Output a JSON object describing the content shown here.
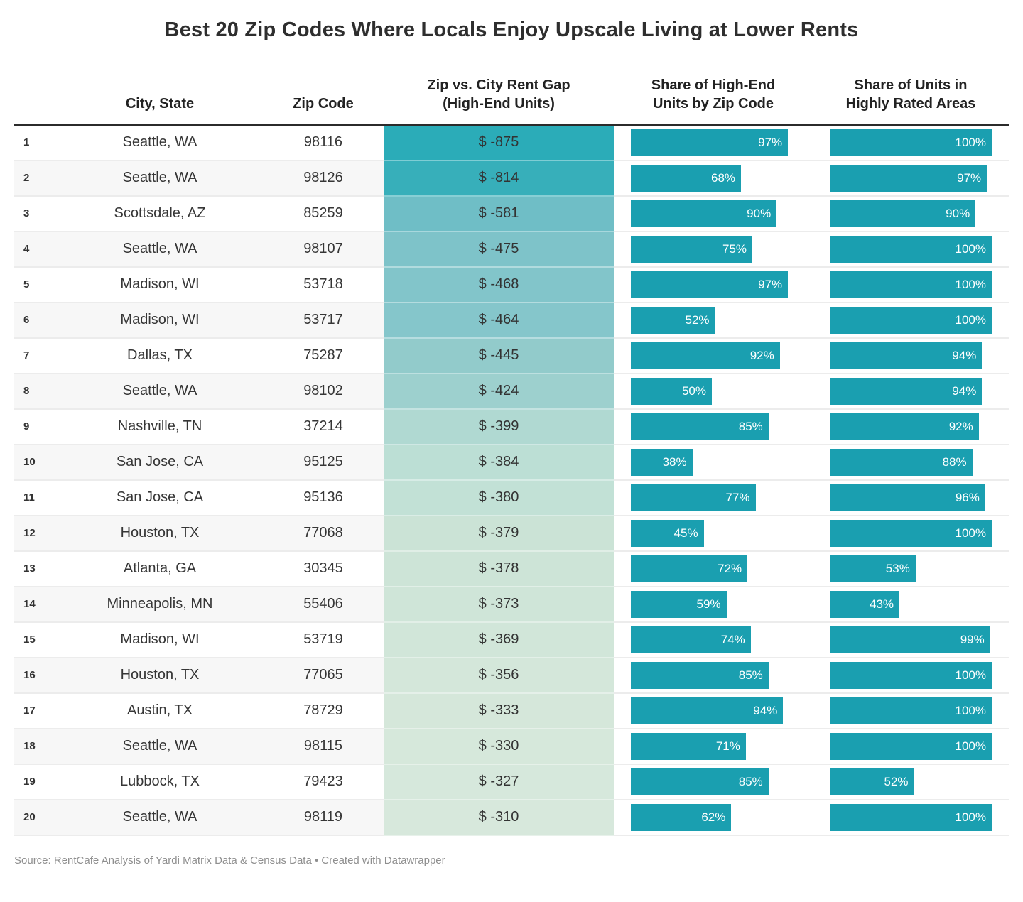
{
  "title": "Best 20 Zip Codes Where Locals Enjoy Upscale Living at Lower Rents",
  "footer": {
    "source_line": "Source: RentCafe Analysis of Yardi Matrix Data & Census Data • Created with Datawrapper"
  },
  "colors": {
    "bar": "#1a9fb0",
    "header_rule": "#2b2b2b",
    "row_stripe": "#f7f7f7",
    "row_border": "#ececec",
    "bar_label_text": "#ffffff",
    "body_text": "#363636"
  },
  "chart_data": {
    "type": "table",
    "title": "Best 20 Zip Codes Where Locals Enjoy Upscale Living at Lower Rents",
    "columns": [
      "",
      "City, State",
      "Zip Code",
      "Zip vs. City Rent Gap (High-End Units)",
      "Share of High-End Units by Zip Code",
      "Share of Units in Highly Rated Areas"
    ],
    "bar_axis_max_pct": 100,
    "gap_color_scale": {
      "min_value": -875,
      "max_value": -310,
      "min_color": "#2bacb8",
      "max_color": "#d7e8dc"
    },
    "rows": [
      {
        "rank": "1",
        "city": "Seattle, WA",
        "zip": "98116",
        "rent_gap": "$ -875",
        "rent_gap_value": -875,
        "high_end_pct": 97,
        "high_end_label": "97%",
        "highly_rated_pct": 100,
        "highly_rated_label": "100%",
        "gap_color": "#2bacb8"
      },
      {
        "rank": "2",
        "city": "Seattle, WA",
        "zip": "98126",
        "rent_gap": "$ -814",
        "rent_gap_value": -814,
        "high_end_pct": 68,
        "high_end_label": "68%",
        "highly_rated_pct": 97,
        "highly_rated_label": "97%",
        "gap_color": "#37afba"
      },
      {
        "rank": "3",
        "city": "Scottsdale, AZ",
        "zip": "85259",
        "rent_gap": "$ -581",
        "rent_gap_value": -581,
        "high_end_pct": 90,
        "high_end_label": "90%",
        "highly_rated_pct": 90,
        "highly_rated_label": "90%",
        "gap_color": "#6fbec6"
      },
      {
        "rank": "4",
        "city": "Seattle, WA",
        "zip": "98107",
        "rent_gap": "$ -475",
        "rent_gap_value": -475,
        "high_end_pct": 75,
        "high_end_label": "75%",
        "highly_rated_pct": 100,
        "highly_rated_label": "100%",
        "gap_color": "#7ec3c9"
      },
      {
        "rank": "5",
        "city": "Madison, WI",
        "zip": "53718",
        "rent_gap": "$ -468",
        "rent_gap_value": -468,
        "high_end_pct": 97,
        "high_end_label": "97%",
        "highly_rated_pct": 100,
        "highly_rated_label": "100%",
        "gap_color": "#82c5ca"
      },
      {
        "rank": "6",
        "city": "Madison, WI",
        "zip": "53717",
        "rent_gap": "$ -464",
        "rent_gap_value": -464,
        "high_end_pct": 52,
        "high_end_label": "52%",
        "highly_rated_pct": 100,
        "highly_rated_label": "100%",
        "gap_color": "#85c6cb"
      },
      {
        "rank": "7",
        "city": "Dallas, TX",
        "zip": "75287",
        "rent_gap": "$ -445",
        "rent_gap_value": -445,
        "high_end_pct": 92,
        "high_end_label": "92%",
        "highly_rated_pct": 94,
        "highly_rated_label": "94%",
        "gap_color": "#92cbcb"
      },
      {
        "rank": "8",
        "city": "Seattle, WA",
        "zip": "98102",
        "rent_gap": "$ -424",
        "rent_gap_value": -424,
        "high_end_pct": 50,
        "high_end_label": "50%",
        "highly_rated_pct": 94,
        "highly_rated_label": "94%",
        "gap_color": "#9dd0ce"
      },
      {
        "rank": "9",
        "city": "Nashville, TN",
        "zip": "37214",
        "rent_gap": "$ -399",
        "rent_gap_value": -399,
        "high_end_pct": 85,
        "high_end_label": "85%",
        "highly_rated_pct": 92,
        "highly_rated_label": "92%",
        "gap_color": "#b0d9d2"
      },
      {
        "rank": "10",
        "city": "San Jose, CA",
        "zip": "95125",
        "rent_gap": "$ -384",
        "rent_gap_value": -384,
        "high_end_pct": 38,
        "high_end_label": "38%",
        "highly_rated_pct": 88,
        "highly_rated_label": "88%",
        "gap_color": "#bcdfd5"
      },
      {
        "rank": "11",
        "city": "San Jose, CA",
        "zip": "95136",
        "rent_gap": "$ -380",
        "rent_gap_value": -380,
        "high_end_pct": 77,
        "high_end_label": "77%",
        "highly_rated_pct": 96,
        "highly_rated_label": "96%",
        "gap_color": "#c2e1d6"
      },
      {
        "rank": "12",
        "city": "Houston, TX",
        "zip": "77068",
        "rent_gap": "$ -379",
        "rent_gap_value": -379,
        "high_end_pct": 45,
        "high_end_label": "45%",
        "highly_rated_pct": 100,
        "highly_rated_label": "100%",
        "gap_color": "#cbe3d6"
      },
      {
        "rank": "13",
        "city": "Atlanta, GA",
        "zip": "30345",
        "rent_gap": "$ -378",
        "rent_gap_value": -378,
        "high_end_pct": 72,
        "high_end_label": "72%",
        "highly_rated_pct": 53,
        "highly_rated_label": "53%",
        "gap_color": "#cde4d7"
      },
      {
        "rank": "14",
        "city": "Minneapolis, MN",
        "zip": "55406",
        "rent_gap": "$ -373",
        "rent_gap_value": -373,
        "high_end_pct": 59,
        "high_end_label": "59%",
        "highly_rated_pct": 43,
        "highly_rated_label": "43%",
        "gap_color": "#cfe5d8"
      },
      {
        "rank": "15",
        "city": "Madison, WI",
        "zip": "53719",
        "rent_gap": "$ -369",
        "rent_gap_value": -369,
        "high_end_pct": 74,
        "high_end_label": "74%",
        "highly_rated_pct": 99,
        "highly_rated_label": "99%",
        "gap_color": "#d1e6d9"
      },
      {
        "rank": "16",
        "city": "Houston, TX",
        "zip": "77065",
        "rent_gap": "$ -356",
        "rent_gap_value": -356,
        "high_end_pct": 85,
        "high_end_label": "85%",
        "highly_rated_pct": 100,
        "highly_rated_label": "100%",
        "gap_color": "#d4e7da"
      },
      {
        "rank": "17",
        "city": "Austin, TX",
        "zip": "78729",
        "rent_gap": "$ -333",
        "rent_gap_value": -333,
        "high_end_pct": 94,
        "high_end_label": "94%",
        "highly_rated_pct": 100,
        "highly_rated_label": "100%",
        "gap_color": "#d5e7da"
      },
      {
        "rank": "18",
        "city": "Seattle, WA",
        "zip": "98115",
        "rent_gap": "$ -330",
        "rent_gap_value": -330,
        "high_end_pct": 71,
        "high_end_label": "71%",
        "highly_rated_pct": 100,
        "highly_rated_label": "100%",
        "gap_color": "#d6e8db"
      },
      {
        "rank": "19",
        "city": "Lubbock, TX",
        "zip": "79423",
        "rent_gap": "$ -327",
        "rent_gap_value": -327,
        "high_end_pct": 85,
        "high_end_label": "85%",
        "highly_rated_pct": 52,
        "highly_rated_label": "52%",
        "gap_color": "#d6e8dc"
      },
      {
        "rank": "20",
        "city": "Seattle, WA",
        "zip": "98119",
        "rent_gap": "$ -310",
        "rent_gap_value": -310,
        "high_end_pct": 62,
        "high_end_label": "62%",
        "highly_rated_pct": 100,
        "highly_rated_label": "100%",
        "gap_color": "#d7e8dc"
      }
    ]
  },
  "header_labels": {
    "city": "City, State",
    "zip": "Zip Code",
    "gap": "Zip vs. City Rent Gap (High-End Units)",
    "bar1": "Share of High-End Units by Zip Code",
    "bar2": "Share of Units in Highly Rated Areas"
  }
}
